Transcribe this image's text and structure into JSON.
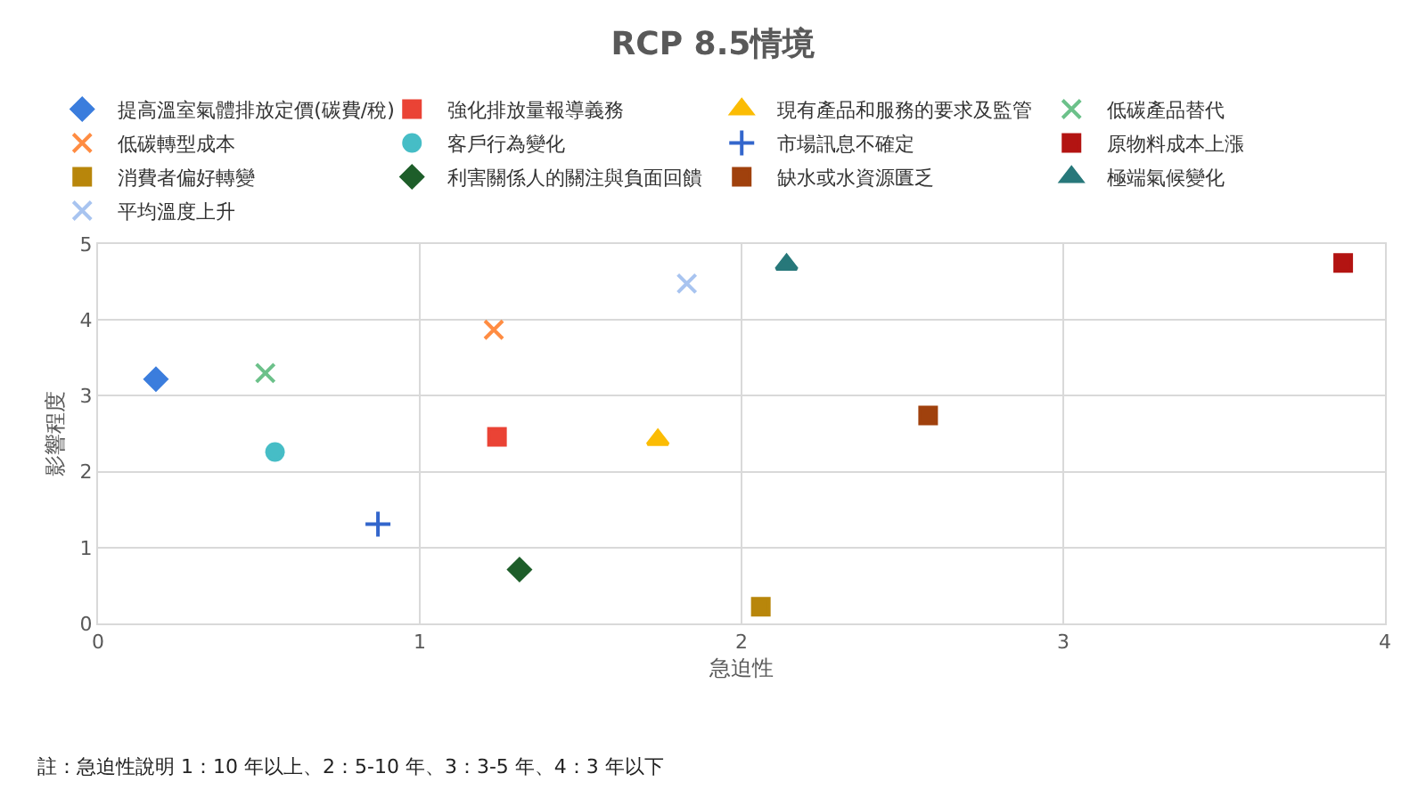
{
  "chart_data": {
    "type": "scatter",
    "title": "RCP 8.5情境",
    "xlabel": "急迫性",
    "ylabel": "影響程度",
    "annotations": [
      "註：急迫性說明 1：10 年以上、2：5-10 年、3：3-5 年、4：3 年以下"
    ],
    "xlim": [
      0,
      4
    ],
    "xticks": [
      0,
      1,
      2,
      3,
      4
    ],
    "ylim": [
      0,
      5
    ],
    "yticks": [
      0,
      1,
      2,
      3,
      4,
      5
    ],
    "grid": true,
    "legend": "top",
    "series": [
      {
        "name": "提高溫室氣體排放定價(碳費/稅)",
        "color": "#3b7ddd",
        "marker": "diamond",
        "x": [
          0.18
        ],
        "values": [
          3.22
        ]
      },
      {
        "name": "強化排放量報導義務",
        "color": "#ea4335",
        "marker": "square",
        "x": [
          1.24
        ],
        "values": [
          2.46
        ]
      },
      {
        "name": "現有產品和服務的要求及監管",
        "color": "#fbbc04",
        "marker": "triangle",
        "x": [
          1.74
        ],
        "values": [
          2.42
        ]
      },
      {
        "name": "低碳產品替代",
        "color": "#6cc18a",
        "marker": "cross",
        "x": [
          0.52
        ],
        "values": [
          3.3
        ]
      },
      {
        "name": "低碳轉型成本",
        "color": "#ff8c42",
        "marker": "cross",
        "x": [
          1.23
        ],
        "values": [
          3.87
        ]
      },
      {
        "name": "客戶行為變化",
        "color": "#46bdc6",
        "marker": "circle",
        "x": [
          0.55
        ],
        "values": [
          2.26
        ]
      },
      {
        "name": "市場訊息不確定",
        "color": "#3366cc",
        "marker": "plus",
        "x": [
          0.87
        ],
        "values": [
          1.31
        ]
      },
      {
        "name": "原物料成本上漲",
        "color": "#b31412",
        "marker": "square",
        "x": [
          3.87
        ],
        "values": [
          4.75
        ]
      },
      {
        "name": "消費者偏好轉變",
        "color": "#b8860b",
        "marker": "square",
        "x": [
          2.06
        ],
        "values": [
          0.22
        ]
      },
      {
        "name": "利害關係人的關注與負面回饋",
        "color": "#1e5e2a",
        "marker": "diamond",
        "x": [
          1.31
        ],
        "values": [
          0.71
        ]
      },
      {
        "name": "缺水或水資源匱乏",
        "color": "#a0410d",
        "marker": "square",
        "x": [
          2.58
        ],
        "values": [
          2.74
        ]
      },
      {
        "name": "極端氣候變化",
        "color": "#27787a",
        "marker": "triangle",
        "x": [
          2.14
        ],
        "values": [
          4.73
        ]
      },
      {
        "name": "平均溫度上升",
        "color": "#a8c4f0",
        "marker": "cross",
        "x": [
          1.83
        ],
        "values": [
          4.48
        ]
      }
    ]
  }
}
